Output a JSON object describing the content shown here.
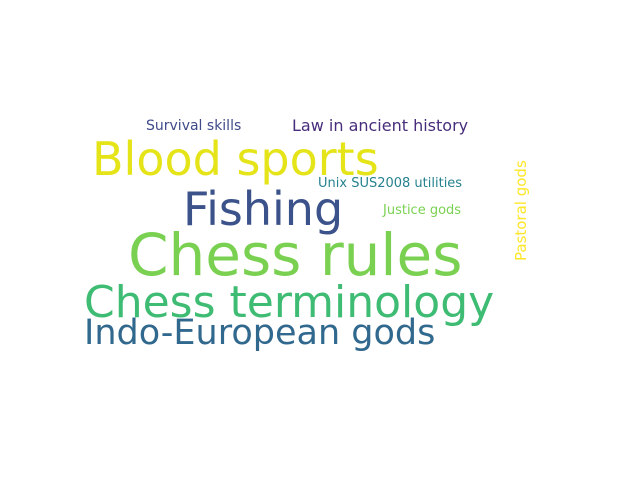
{
  "word_cloud": {
    "words": [
      {
        "id": "chess-rules",
        "text": "Chess rules",
        "color": "#7ad151"
      },
      {
        "id": "chess-term",
        "text": "Chess terminology",
        "color": "#3fbc73"
      },
      {
        "id": "blood-sports",
        "text": "Blood sports",
        "color": "#e5e419"
      },
      {
        "id": "fishing",
        "text": "Fishing",
        "color": "#3b528b"
      },
      {
        "id": "indo-european",
        "text": "Indo-European gods",
        "color": "#31688e"
      },
      {
        "id": "law-ancient",
        "text": "Law in ancient history",
        "color": "#472d7b"
      },
      {
        "id": "survival",
        "text": "Survival skills",
        "color": "#3e4a89"
      },
      {
        "id": "unix",
        "text": "Unix SUS2008 utilities",
        "color": "#26828e"
      },
      {
        "id": "justice",
        "text": "Justice gods",
        "color": "#7ad151"
      },
      {
        "id": "pastoral",
        "text": "Pastoral gods",
        "color": "#fde725"
      }
    ]
  }
}
